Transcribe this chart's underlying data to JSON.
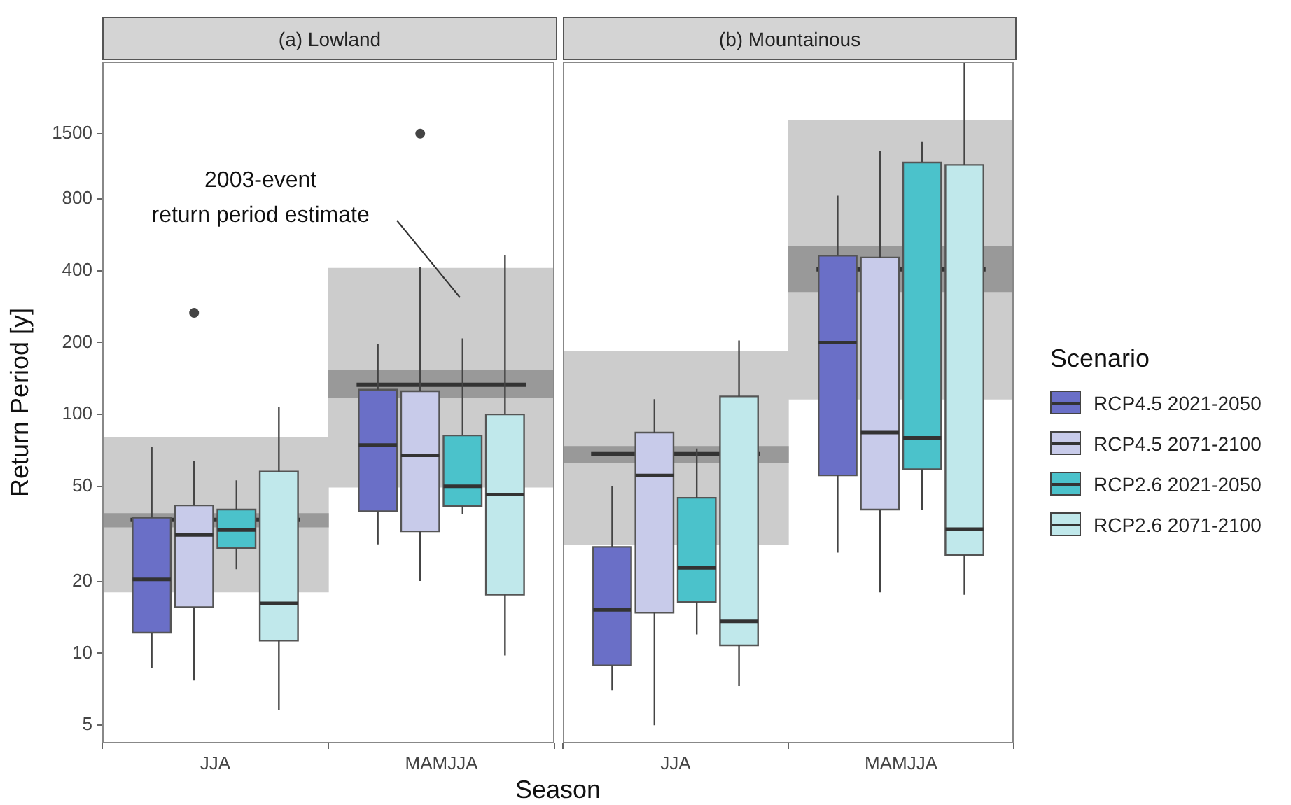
{
  "chart_data": [
    {
      "type": "box",
      "title": "(a) Lowland",
      "xlabel": "Season",
      "ylabel": "Return Period [y]",
      "categories": [
        "JJA",
        "MAMJJA"
      ],
      "log": "y",
      "ylim": [
        4.2,
        3000
      ],
      "yticks": [
        5,
        10,
        20,
        50,
        100,
        200,
        400,
        800,
        1500
      ],
      "series": [
        {
          "type": "bar",
          "color": "#cccccc",
          "base": [
            18.1,
            49.7
          ],
          "values": [
            61.7,
            359.3
          ]
        },
        {
          "type": "bar",
          "color": "#999999",
          "base": [
            33.8,
            118
          ],
          "values": [
            4.6,
            35
          ]
        },
        {
          "color": "#6a6fc7",
          "boxes": [
            {
              "low": 8.7,
              "q1": 12.2,
              "median": 20.4,
              "q3": 37,
              "high": 73
            },
            {
              "low": 28.6,
              "q1": 39.3,
              "median": 74.5,
              "q3": 127,
              "high": 198
            }
          ]
        },
        {
          "color": "#c8cbea",
          "boxes": [
            {
              "low": 7.7,
              "q1": 15.6,
              "median": 31.3,
              "q3": 41.6,
              "high": 64,
              "outliers": [
                266
              ]
            },
            {
              "low": 20.1,
              "q1": 32.4,
              "median": 67.5,
              "q3": 125,
              "high": 415,
              "outliers": [
                1500
              ]
            }
          ]
        },
        {
          "color": "#4bc2cb",
          "boxes": [
            {
              "low": 22.5,
              "q1": 27.6,
              "median": 32.8,
              "q3": 40,
              "high": 53
            },
            {
              "low": 38.4,
              "q1": 41.3,
              "median": 50,
              "q3": 81.7,
              "high": 208
            }
          ]
        },
        {
          "color": "#c0e8eb",
          "boxes": [
            {
              "low": 5.8,
              "q1": 11.3,
              "median": 16.2,
              "q3": 57.7,
              "high": 107
            },
            {
              "low": 9.8,
              "q1": 17.6,
              "median": 46.2,
              "q3": 100,
              "high": 463
            }
          ]
        }
      ],
      "ref_lines": [
        {
          "axis": "y",
          "value": 36.2,
          "color": "#333333"
        },
        {
          "axis": "y",
          "value": 133,
          "color": "#333333"
        }
      ],
      "annotations": [
        "2003-event\nreturn period estimate"
      ]
    },
    {
      "type": "box",
      "title": "(b) Mountainous",
      "legend_title": "Scenario",
      "categories": [
        "JJA",
        "MAMJJA"
      ],
      "log": "y",
      "ylim": [
        4.2,
        3000
      ],
      "yticks": [
        5,
        10,
        20,
        50,
        100,
        200,
        400,
        800,
        1500
      ],
      "tick_labels": "x",
      "legend": "right",
      "series": [
        {
          "type": "bar",
          "color": "#cccccc",
          "base": [
            28.6,
            116
          ],
          "values": [
            155.4,
            1579
          ]
        },
        {
          "type": "bar",
          "color": "#999999",
          "base": [
            62.8,
            327
          ],
          "values": [
            10.6,
            176
          ]
        },
        {
          "name": "RCP4.5 2021-2050",
          "color": "#6a6fc7",
          "boxes": [
            {
              "low": 7.0,
              "q1": 8.9,
              "median": 15.2,
              "q3": 27.9,
              "high": 50
            },
            {
              "low": 26.4,
              "q1": 55.6,
              "median": 200,
              "q3": 462,
              "high": 824
            }
          ]
        },
        {
          "name": "RCP4.5 2071-2100",
          "color": "#c8cbea",
          "boxes": [
            {
              "low": 5.0,
              "q1": 14.8,
              "median": 55.6,
              "q3": 84,
              "high": 116
            },
            {
              "low": 18,
              "q1": 40,
              "median": 84,
              "q3": 454,
              "high": 1270
            }
          ]
        },
        {
          "name": "RCP2.6 2021-2050",
          "color": "#4bc2cb",
          "boxes": [
            {
              "low": 12,
              "q1": 16.4,
              "median": 22.8,
              "q3": 44.8,
              "high": 72
            },
            {
              "low": 40,
              "q1": 59,
              "median": 79.8,
              "q3": 1135,
              "high": 1384
            }
          ]
        },
        {
          "name": "RCP2.6 2071-2100",
          "color": "#c0e8eb",
          "boxes": [
            {
              "low": 7.3,
              "q1": 10.8,
              "median": 13.6,
              "q3": 119,
              "high": 204
            },
            {
              "low": 17.6,
              "q1": 25.8,
              "median": 33.1,
              "q3": 1110,
              "high": 3000
            }
          ]
        }
      ],
      "ref_lines": [
        {
          "axis": "y",
          "value": 68.2,
          "color": "#333333"
        },
        {
          "axis": "y",
          "value": 405,
          "color": "#333333"
        }
      ]
    }
  ]
}
